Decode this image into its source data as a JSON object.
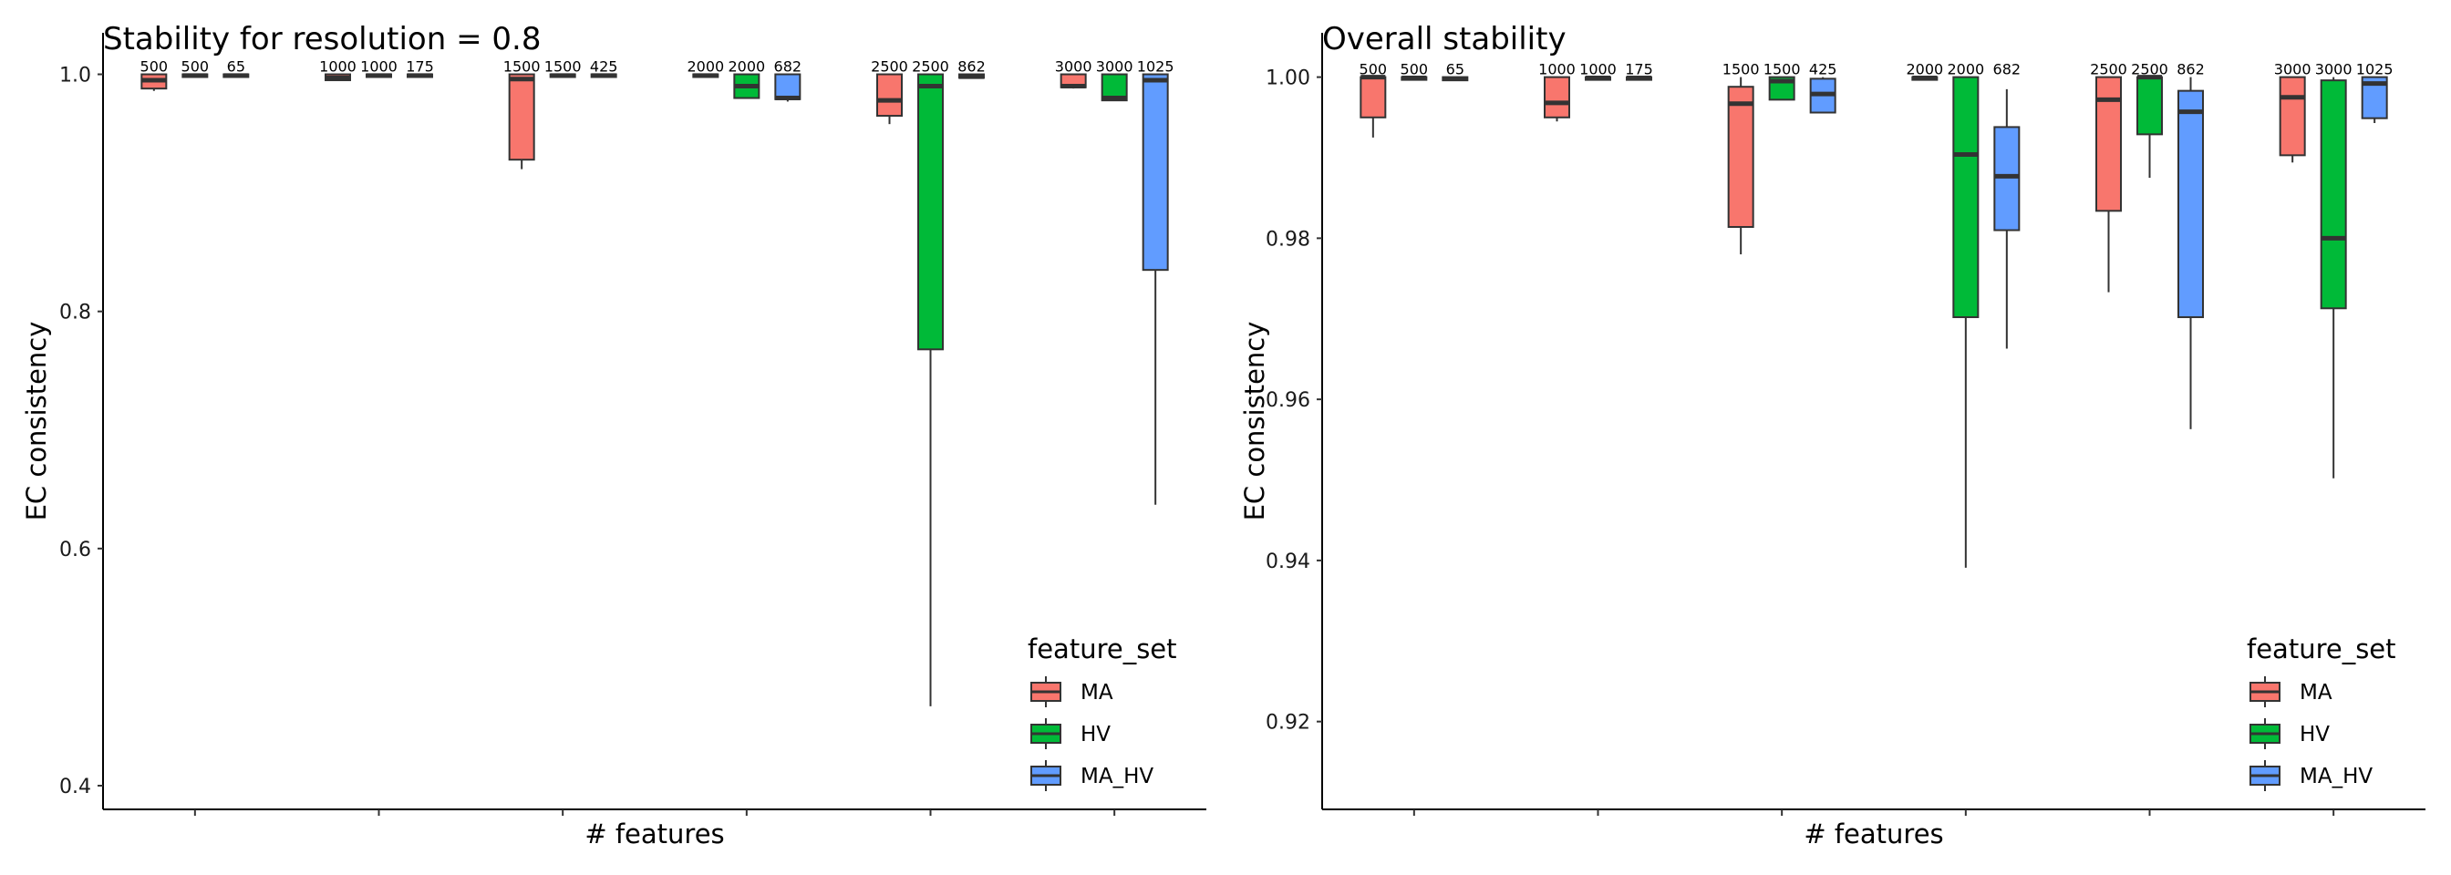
{
  "colors": {
    "MA": "#F8766D",
    "HV": "#00BA38",
    "MA_HV": "#619CFF"
  },
  "chart_data": [
    {
      "type": "box",
      "title": "Stability for resolution = 0.8",
      "xlabel": "# features",
      "ylabel": "EC consistency",
      "ylim": [
        0.38,
        1.035
      ],
      "yticks": [
        0.4,
        0.6,
        0.8,
        1.0
      ],
      "ytick_labels": [
        "0.4",
        "0.6",
        "0.8",
        "1.0"
      ],
      "groups": 6,
      "legend": {
        "title": "feature_set",
        "items": [
          "MA",
          "HV",
          "MA_HV"
        ],
        "position": "bottom-right"
      },
      "boxes": [
        {
          "group": 0,
          "set": "MA",
          "n": "500",
          "min": 0.986,
          "q1": 0.988,
          "median": 0.995,
          "q3": 1.0,
          "max": 1.0
        },
        {
          "group": 0,
          "set": "HV",
          "n": "500",
          "min": 0.998,
          "q1": 0.998,
          "median": 0.999,
          "q3": 1.0,
          "max": 1.0
        },
        {
          "group": 0,
          "set": "MA_HV",
          "n": "65",
          "min": 0.998,
          "q1": 0.998,
          "median": 0.999,
          "q3": 1.0,
          "max": 1.0
        },
        {
          "group": 1,
          "set": "MA",
          "n": "1000",
          "min": 0.995,
          "q1": 0.995,
          "median": 0.997,
          "q3": 1.0,
          "max": 1.0
        },
        {
          "group": 1,
          "set": "HV",
          "n": "1000",
          "min": 0.998,
          "q1": 0.998,
          "median": 0.999,
          "q3": 1.0,
          "max": 1.0
        },
        {
          "group": 1,
          "set": "MA_HV",
          "n": "175",
          "min": 0.998,
          "q1": 0.998,
          "median": 0.999,
          "q3": 1.0,
          "max": 1.0
        },
        {
          "group": 2,
          "set": "MA",
          "n": "1500",
          "min": 0.92,
          "q1": 0.928,
          "median": 0.996,
          "q3": 1.0,
          "max": 1.0
        },
        {
          "group": 2,
          "set": "HV",
          "n": "1500",
          "min": 0.998,
          "q1": 0.998,
          "median": 0.999,
          "q3": 1.0,
          "max": 1.0
        },
        {
          "group": 2,
          "set": "MA_HV",
          "n": "425",
          "min": 0.998,
          "q1": 0.998,
          "median": 0.999,
          "q3": 1.0,
          "max": 1.0
        },
        {
          "group": 3,
          "set": "MA",
          "n": "2000",
          "min": 0.998,
          "q1": 0.998,
          "median": 0.999,
          "q3": 1.0,
          "max": 1.0
        },
        {
          "group": 3,
          "set": "HV",
          "n": "2000",
          "min": 0.98,
          "q1": 0.98,
          "median": 0.99,
          "q3": 1.0,
          "max": 1.0
        },
        {
          "group": 3,
          "set": "MA_HV",
          "n": "682",
          "min": 0.977,
          "q1": 0.979,
          "median": 0.98,
          "q3": 1.0,
          "max": 1.0
        },
        {
          "group": 4,
          "set": "MA",
          "n": "2500",
          "min": 0.958,
          "q1": 0.965,
          "median": 0.978,
          "q3": 1.0,
          "max": 1.0
        },
        {
          "group": 4,
          "set": "HV",
          "n": "2500",
          "min": 0.467,
          "q1": 0.768,
          "median": 0.99,
          "q3": 1.0,
          "max": 1.0
        },
        {
          "group": 4,
          "set": "MA_HV",
          "n": "862",
          "min": 0.997,
          "q1": 0.997,
          "median": 0.998,
          "q3": 1.0,
          "max": 1.0
        },
        {
          "group": 5,
          "set": "MA",
          "n": "3000",
          "min": 0.988,
          "q1": 0.989,
          "median": 0.99,
          "q3": 1.0,
          "max": 1.0
        },
        {
          "group": 5,
          "set": "HV",
          "n": "3000",
          "min": 0.978,
          "q1": 0.978,
          "median": 0.98,
          "q3": 1.0,
          "max": 1.0
        },
        {
          "group": 5,
          "set": "MA_HV",
          "n": "1025",
          "min": 0.637,
          "q1": 0.835,
          "median": 0.995,
          "q3": 1.0,
          "max": 1.0
        }
      ]
    },
    {
      "type": "box",
      "title": "Overall stability",
      "xlabel": "# features",
      "ylabel": "EC consistency",
      "ylim": [
        0.9091,
        1.0055
      ],
      "yticks": [
        0.92,
        0.94,
        0.96,
        0.98,
        1.0
      ],
      "ytick_labels": [
        "0.92",
        "0.94",
        "0.96",
        "0.98",
        "1.00"
      ],
      "groups": 6,
      "legend": {
        "title": "feature_set",
        "items": [
          "MA",
          "HV",
          "MA_HV"
        ],
        "position": "bottom-right"
      },
      "boxes": [
        {
          "group": 0,
          "set": "MA",
          "n": "500",
          "min": 0.9925,
          "q1": 0.995,
          "median": 1.0,
          "q3": 1.0,
          "max": 1.0
        },
        {
          "group": 0,
          "set": "HV",
          "n": "500",
          "min": 0.9998,
          "q1": 0.9998,
          "median": 0.9999,
          "q3": 1.0,
          "max": 1.0
        },
        {
          "group": 0,
          "set": "MA_HV",
          "n": "65",
          "min": 0.9996,
          "q1": 0.9996,
          "median": 0.9998,
          "q3": 1.0,
          "max": 1.0
        },
        {
          "group": 1,
          "set": "MA",
          "n": "1000",
          "min": 0.9945,
          "q1": 0.995,
          "median": 0.9968,
          "q3": 1.0,
          "max": 1.0
        },
        {
          "group": 1,
          "set": "HV",
          "n": "1000",
          "min": 0.9998,
          "q1": 0.9998,
          "median": 0.9999,
          "q3": 1.0,
          "max": 1.0
        },
        {
          "group": 1,
          "set": "MA_HV",
          "n": "175",
          "min": 0.9998,
          "q1": 0.9998,
          "median": 0.9999,
          "q3": 1.0,
          "max": 1.0
        },
        {
          "group": 2,
          "set": "MA",
          "n": "1500",
          "min": 0.978,
          "q1": 0.9814,
          "median": 0.9967,
          "q3": 0.9988,
          "max": 1.0
        },
        {
          "group": 2,
          "set": "HV",
          "n": "1500",
          "min": 0.9972,
          "q1": 0.9972,
          "median": 0.9995,
          "q3": 1.0,
          "max": 1.0
        },
        {
          "group": 2,
          "set": "MA_HV",
          "n": "425",
          "min": 0.9956,
          "q1": 0.9956,
          "median": 0.9979,
          "q3": 0.9998,
          "max": 1.0
        },
        {
          "group": 3,
          "set": "MA",
          "n": "2000",
          "min": 0.9998,
          "q1": 0.9998,
          "median": 0.9999,
          "q3": 1.0,
          "max": 1.0
        },
        {
          "group": 3,
          "set": "HV",
          "n": "2000",
          "min": 0.9391,
          "q1": 0.9702,
          "median": 0.9904,
          "q3": 1.0,
          "max": 1.0
        },
        {
          "group": 3,
          "set": "MA_HV",
          "n": "682",
          "min": 0.9663,
          "q1": 0.981,
          "median": 0.9877,
          "q3": 0.9938,
          "max": 0.9985
        },
        {
          "group": 4,
          "set": "MA",
          "n": "2500",
          "min": 0.9733,
          "q1": 0.9834,
          "median": 0.9972,
          "q3": 1.0,
          "max": 1.0
        },
        {
          "group": 4,
          "set": "HV",
          "n": "2500",
          "min": 0.9875,
          "q1": 0.9929,
          "median": 1.0,
          "q3": 1.0,
          "max": 1.0
        },
        {
          "group": 4,
          "set": "MA_HV",
          "n": "862",
          "min": 0.9563,
          "q1": 0.9702,
          "median": 0.9957,
          "q3": 0.9983,
          "max": 1.0
        },
        {
          "group": 5,
          "set": "MA",
          "n": "3000",
          "min": 0.9894,
          "q1": 0.9903,
          "median": 0.9975,
          "q3": 1.0,
          "max": 1.0
        },
        {
          "group": 5,
          "set": "HV",
          "n": "3000",
          "min": 0.9502,
          "q1": 0.9713,
          "median": 0.98,
          "q3": 0.9996,
          "max": 1.0
        },
        {
          "group": 5,
          "set": "MA_HV",
          "n": "1025",
          "min": 0.9943,
          "q1": 0.9949,
          "median": 0.9992,
          "q3": 1.0,
          "max": 1.0
        }
      ]
    }
  ]
}
